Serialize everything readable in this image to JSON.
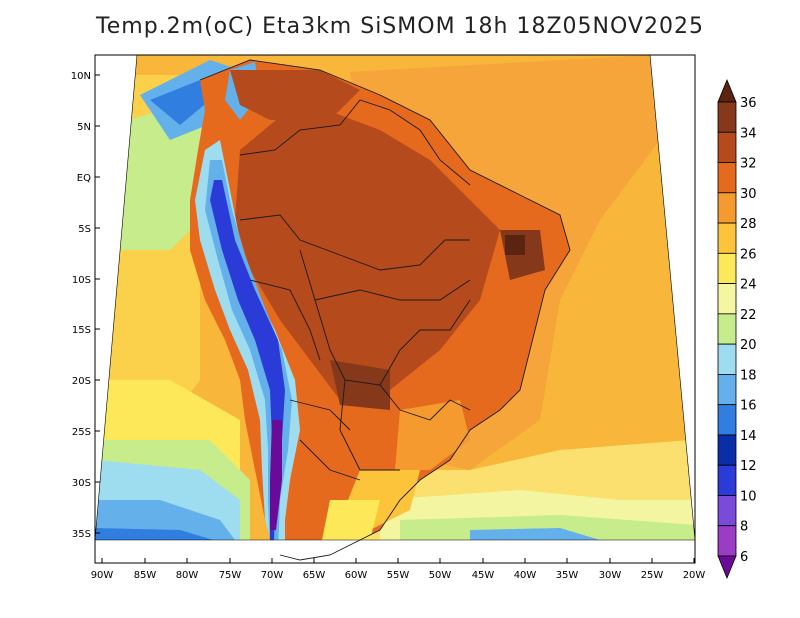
{
  "title": "Temp.2m(oC) Eta3km SiSMOM 18h 18Z05NOV2025",
  "map": {
    "lat_ticks": [
      "10N",
      "5N",
      "EQ",
      "5S",
      "10S",
      "15S",
      "20S",
      "25S",
      "30S",
      "35S"
    ],
    "lon_ticks": [
      "90W",
      "85W",
      "80W",
      "75W",
      "70W",
      "65W",
      "60W",
      "55W",
      "50W",
      "45W",
      "40W",
      "35W",
      "30W",
      "25W",
      "20W"
    ]
  },
  "colorbar": {
    "labels": [
      "36",
      "34",
      "32",
      "30",
      "28",
      "26",
      "24",
      "22",
      "20",
      "18",
      "16",
      "14",
      "12",
      "10",
      "8",
      "6"
    ],
    "colors": [
      "#5a2410",
      "#85391a",
      "#b54a1c",
      "#e56a1e",
      "#f49a2e",
      "#fbc43a",
      "#fde85a",
      "#f5f7a0",
      "#c6ec8c",
      "#9edcf0",
      "#64b0ea",
      "#2f7ee0",
      "#0a2ea8",
      "#2b3bd8",
      "#7a4bd8",
      "#9a3cc4",
      "#6a0a98"
    ]
  }
}
